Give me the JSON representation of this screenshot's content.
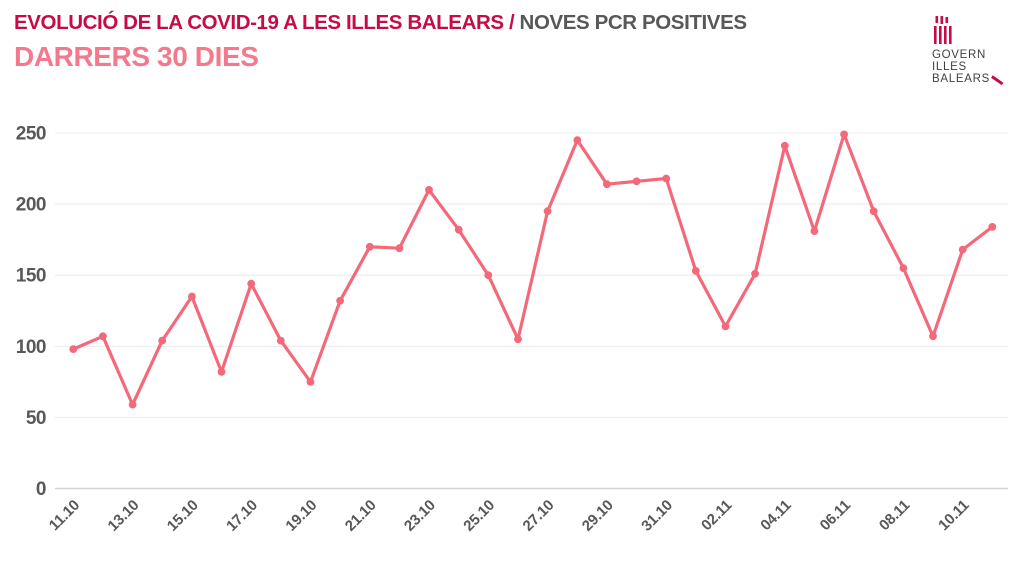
{
  "header": {
    "title_main": "EVOLUCIÓ DE LA COVID-19 A LES ILLES BALEARS /",
    "title_secondary": "NOVES PCR POSITIVES",
    "subtitle": "DARRERS 30 DIES"
  },
  "logo": {
    "icon": "govern-illes-balears-emblem",
    "lines": [
      "GOVERN",
      "ILLES",
      "BALEARS"
    ]
  },
  "colors": {
    "title_crimson": "#c60b46",
    "subtitle_salmon": "#f4798c",
    "title_gray": "#58585a",
    "axis_text": "#58585a",
    "grid": "#ececec",
    "zero_line": "#d5d5d5",
    "line": "#f4697a",
    "logo_text": "#414042",
    "background": "#ffffff"
  },
  "chart_data": {
    "type": "line",
    "title": "EVOLUCIÓ DE LA COVID-19 A LES ILLES BALEARS / NOVES PCR POSITIVES — DARRERS 30 DIES",
    "x": [
      "11.10",
      "12.10",
      "13.10",
      "14.10",
      "15.10",
      "16.10",
      "17.10",
      "18.10",
      "19.10",
      "20.10",
      "21.10",
      "22.10",
      "23.10",
      "24.10",
      "25.10",
      "26.10",
      "27.10",
      "28.10",
      "29.10",
      "30.10",
      "31.10",
      "01.11",
      "02.11",
      "03.11",
      "04.11",
      "05.11",
      "06.11",
      "07.11",
      "08.11",
      "09.11",
      "10.11",
      "11.11"
    ],
    "values": [
      98,
      107,
      59,
      104,
      135,
      82,
      144,
      104,
      75,
      132,
      170,
      169,
      210,
      182,
      150,
      105,
      195,
      245,
      214,
      216,
      218,
      153,
      114,
      151,
      241,
      181,
      249,
      195,
      155,
      107,
      168,
      184
    ],
    "xtick_labels": [
      "11.10",
      "13.10",
      "15.10",
      "17.10",
      "19.10",
      "21.10",
      "23.10",
      "25.10",
      "27.10",
      "29.10",
      "31.10",
      "02.11",
      "04.11",
      "06.11",
      "08.11",
      "10.11"
    ],
    "xtick_every": 2,
    "yticks": [
      0,
      50,
      100,
      150,
      200,
      250
    ],
    "ylim": [
      0,
      250
    ],
    "grid": "horizontal",
    "legend": "none",
    "marker": "circle",
    "line_color": "#f4697a"
  }
}
